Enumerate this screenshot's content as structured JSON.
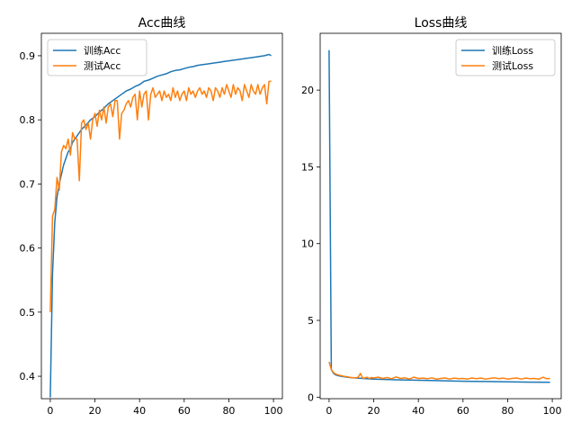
{
  "colors": {
    "train": "#1f77b4",
    "test": "#ff7f0e"
  },
  "chart_data": [
    {
      "type": "line",
      "title": "Acc曲线",
      "xlabel": "",
      "ylabel": "",
      "xlim": [
        -4,
        104
      ],
      "ylim": [
        0.365,
        0.935
      ],
      "xticks": [
        0,
        20,
        40,
        60,
        80,
        100
      ],
      "yticks": [
        0.4,
        0.5,
        0.6,
        0.7,
        0.8,
        0.9
      ],
      "legend_position": "top-left",
      "grid": false,
      "series": [
        {
          "name": "训练Acc",
          "color": "#1f77b4",
          "x": [
            0,
            1,
            2,
            3,
            4,
            5,
            6,
            7,
            8,
            9,
            10,
            12,
            14,
            16,
            18,
            20,
            22,
            24,
            26,
            28,
            30,
            32,
            34,
            36,
            38,
            40,
            42,
            44,
            46,
            48,
            50,
            52,
            54,
            56,
            58,
            60,
            62,
            64,
            66,
            68,
            70,
            72,
            74,
            76,
            78,
            80,
            82,
            84,
            86,
            88,
            90,
            92,
            94,
            96,
            98,
            99
          ],
          "y": [
            0.367,
            0.56,
            0.64,
            0.68,
            0.7,
            0.715,
            0.73,
            0.74,
            0.75,
            0.755,
            0.765,
            0.775,
            0.785,
            0.792,
            0.8,
            0.805,
            0.812,
            0.818,
            0.825,
            0.83,
            0.835,
            0.84,
            0.845,
            0.848,
            0.852,
            0.855,
            0.86,
            0.862,
            0.865,
            0.868,
            0.87,
            0.872,
            0.875,
            0.877,
            0.878,
            0.88,
            0.882,
            0.883,
            0.885,
            0.886,
            0.887,
            0.888,
            0.889,
            0.89,
            0.891,
            0.892,
            0.893,
            0.894,
            0.895,
            0.896,
            0.897,
            0.898,
            0.899,
            0.9,
            0.902,
            0.9
          ]
        },
        {
          "name": "测试Acc",
          "color": "#ff7f0e",
          "x": [
            0,
            1,
            2,
            3,
            4,
            5,
            6,
            7,
            8,
            9,
            10,
            11,
            12,
            13,
            14,
            15,
            16,
            17,
            18,
            19,
            20,
            21,
            22,
            23,
            24,
            25,
            26,
            27,
            28,
            29,
            30,
            31,
            32,
            33,
            34,
            35,
            36,
            37,
            38,
            39,
            40,
            41,
            42,
            43,
            44,
            45,
            46,
            47,
            48,
            49,
            50,
            51,
            52,
            53,
            54,
            55,
            56,
            57,
            58,
            59,
            60,
            61,
            62,
            63,
            64,
            65,
            66,
            67,
            68,
            69,
            70,
            71,
            72,
            73,
            74,
            75,
            76,
            77,
            78,
            79,
            80,
            81,
            82,
            83,
            84,
            85,
            86,
            87,
            88,
            89,
            90,
            91,
            92,
            93,
            94,
            95,
            96,
            97,
            98,
            99
          ],
          "y": [
            0.5,
            0.65,
            0.66,
            0.71,
            0.69,
            0.75,
            0.76,
            0.755,
            0.77,
            0.745,
            0.78,
            0.77,
            0.77,
            0.705,
            0.795,
            0.8,
            0.785,
            0.795,
            0.77,
            0.8,
            0.81,
            0.79,
            0.815,
            0.8,
            0.82,
            0.795,
            0.82,
            0.825,
            0.805,
            0.83,
            0.83,
            0.77,
            0.81,
            0.815,
            0.825,
            0.83,
            0.82,
            0.835,
            0.84,
            0.8,
            0.845,
            0.82,
            0.84,
            0.845,
            0.8,
            0.84,
            0.85,
            0.835,
            0.84,
            0.845,
            0.83,
            0.845,
            0.835,
            0.84,
            0.83,
            0.85,
            0.835,
            0.845,
            0.83,
            0.84,
            0.845,
            0.83,
            0.85,
            0.84,
            0.845,
            0.835,
            0.845,
            0.85,
            0.84,
            0.845,
            0.835,
            0.85,
            0.845,
            0.83,
            0.85,
            0.845,
            0.835,
            0.85,
            0.84,
            0.855,
            0.845,
            0.835,
            0.855,
            0.84,
            0.85,
            0.845,
            0.83,
            0.855,
            0.845,
            0.835,
            0.855,
            0.845,
            0.84,
            0.855,
            0.84,
            0.85,
            0.855,
            0.825,
            0.86,
            0.86
          ]
        }
      ]
    },
    {
      "type": "line",
      "title": "Loss曲线",
      "xlabel": "",
      "ylabel": "",
      "xlim": [
        -4,
        104
      ],
      "ylim": [
        -0.1,
        23.7
      ],
      "xticks": [
        0,
        20,
        40,
        60,
        80,
        100
      ],
      "yticks": [
        0,
        5,
        10,
        15,
        20
      ],
      "legend_position": "top-right",
      "grid": false,
      "series": [
        {
          "name": "训练Loss",
          "color": "#1f77b4",
          "x": [
            0,
            1,
            2,
            3,
            4,
            5,
            6,
            8,
            10,
            15,
            20,
            30,
            40,
            50,
            60,
            70,
            80,
            90,
            99
          ],
          "y": [
            22.6,
            1.8,
            1.55,
            1.45,
            1.4,
            1.37,
            1.34,
            1.3,
            1.27,
            1.22,
            1.18,
            1.13,
            1.1,
            1.07,
            1.04,
            1.02,
            1.0,
            0.98,
            0.97
          ]
        },
        {
          "name": "测试Loss",
          "color": "#ff7f0e",
          "x": [
            0,
            1,
            2,
            3,
            4,
            5,
            6,
            7,
            8,
            9,
            10,
            11,
            12,
            13,
            14,
            15,
            16,
            17,
            18,
            19,
            20,
            22,
            24,
            26,
            28,
            30,
            32,
            34,
            36,
            38,
            40,
            42,
            44,
            46,
            48,
            50,
            52,
            54,
            56,
            58,
            60,
            62,
            64,
            66,
            68,
            70,
            72,
            74,
            76,
            78,
            80,
            82,
            84,
            86,
            88,
            90,
            92,
            94,
            96,
            97,
            98,
            99
          ],
          "y": [
            2.3,
            1.8,
            1.6,
            1.5,
            1.45,
            1.42,
            1.38,
            1.35,
            1.33,
            1.3,
            1.28,
            1.27,
            1.26,
            1.3,
            1.55,
            1.25,
            1.24,
            1.3,
            1.22,
            1.28,
            1.25,
            1.3,
            1.22,
            1.28,
            1.2,
            1.32,
            1.22,
            1.26,
            1.18,
            1.3,
            1.22,
            1.24,
            1.2,
            1.26,
            1.18,
            1.22,
            1.25,
            1.18,
            1.24,
            1.2,
            1.22,
            1.18,
            1.25,
            1.2,
            1.24,
            1.18,
            1.22,
            1.26,
            1.2,
            1.24,
            1.18,
            1.22,
            1.25,
            1.18,
            1.24,
            1.2,
            1.22,
            1.18,
            1.3,
            1.22,
            1.2,
            1.22
          ]
        }
      ]
    }
  ]
}
